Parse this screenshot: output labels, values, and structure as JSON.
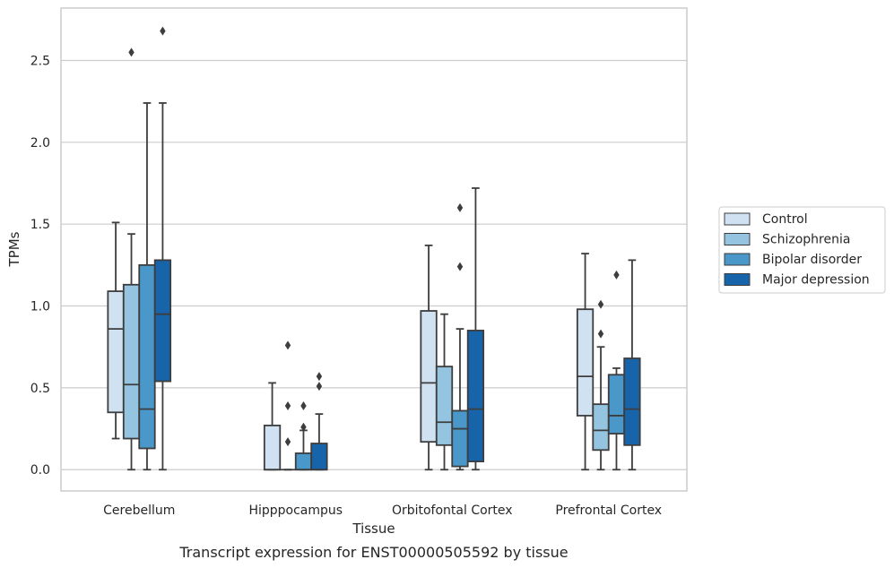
{
  "chart_data": {
    "type": "box",
    "title": "",
    "caption": "Transcript expression for ENST00000505592 by tissue",
    "xlabel": "Tissue",
    "ylabel": "TPMs",
    "ylim": [
      -0.13,
      2.82
    ],
    "yticks": [
      0.0,
      0.5,
      1.0,
      1.5,
      2.0,
      2.5
    ],
    "ytick_labels": [
      "0.0",
      "0.5",
      "1.0",
      "1.5",
      "2.0",
      "2.5"
    ],
    "grid": "horizontal",
    "legend_position": "right",
    "categories": [
      "Cerebellum",
      "Hipppocampus",
      "Orbitofontal Cortex",
      "Prefrontal Cortex"
    ],
    "series": [
      {
        "name": "Control",
        "color": "#d0e1f2",
        "boxes": [
          {
            "whislo": 0.19,
            "q1": 0.35,
            "med": 0.86,
            "q3": 1.09,
            "whishi": 1.51,
            "fliers": []
          },
          {
            "whislo": 0.0,
            "q1": 0.0,
            "med": 0.0,
            "q3": 0.27,
            "whishi": 0.53,
            "fliers": []
          },
          {
            "whislo": 0.0,
            "q1": 0.17,
            "med": 0.53,
            "q3": 0.97,
            "whishi": 1.37,
            "fliers": []
          },
          {
            "whislo": 0.0,
            "q1": 0.33,
            "med": 0.57,
            "q3": 0.98,
            "whishi": 1.32,
            "fliers": []
          }
        ]
      },
      {
        "name": "Schizophrenia",
        "color": "#94c4df",
        "boxes": [
          {
            "whislo": 0.0,
            "q1": 0.19,
            "med": 0.52,
            "q3": 1.13,
            "whishi": 1.44,
            "fliers": [
              2.55
            ]
          },
          {
            "whislo": 0.0,
            "q1": 0.0,
            "med": 0.0,
            "q3": 0.0,
            "whishi": 0.0,
            "fliers": [
              0.17,
              0.39,
              0.76
            ]
          },
          {
            "whislo": 0.0,
            "q1": 0.15,
            "med": 0.29,
            "q3": 0.63,
            "whishi": 0.95,
            "fliers": []
          },
          {
            "whislo": 0.0,
            "q1": 0.12,
            "med": 0.24,
            "q3": 0.4,
            "whishi": 0.75,
            "fliers": [
              0.83,
              1.01
            ]
          }
        ]
      },
      {
        "name": "Bipolar disorder",
        "color": "#4a98c9",
        "boxes": [
          {
            "whislo": 0.0,
            "q1": 0.13,
            "med": 0.37,
            "q3": 1.25,
            "whishi": 2.24,
            "fliers": []
          },
          {
            "whislo": 0.0,
            "q1": 0.0,
            "med": 0.0,
            "q3": 0.1,
            "whishi": 0.24,
            "fliers": [
              0.26,
              0.39
            ]
          },
          {
            "whislo": 0.0,
            "q1": 0.02,
            "med": 0.25,
            "q3": 0.36,
            "whishi": 0.86,
            "fliers": [
              1.24,
              1.6
            ]
          },
          {
            "whislo": 0.0,
            "q1": 0.22,
            "med": 0.33,
            "q3": 0.58,
            "whishi": 0.62,
            "fliers": [
              1.19
            ]
          }
        ]
      },
      {
        "name": "Major depression",
        "color": "#1764ab",
        "boxes": [
          {
            "whislo": 0.0,
            "q1": 0.54,
            "med": 0.95,
            "q3": 1.28,
            "whishi": 2.24,
            "fliers": [
              2.68
            ]
          },
          {
            "whislo": 0.0,
            "q1": 0.0,
            "med": 0.0,
            "q3": 0.16,
            "whishi": 0.34,
            "fliers": [
              0.51,
              0.57
            ]
          },
          {
            "whislo": 0.0,
            "q1": 0.05,
            "med": 0.37,
            "q3": 0.85,
            "whishi": 1.72,
            "fliers": []
          },
          {
            "whislo": 0.0,
            "q1": 0.15,
            "med": 0.37,
            "q3": 0.68,
            "whishi": 1.28,
            "fliers": []
          }
        ]
      }
    ]
  }
}
